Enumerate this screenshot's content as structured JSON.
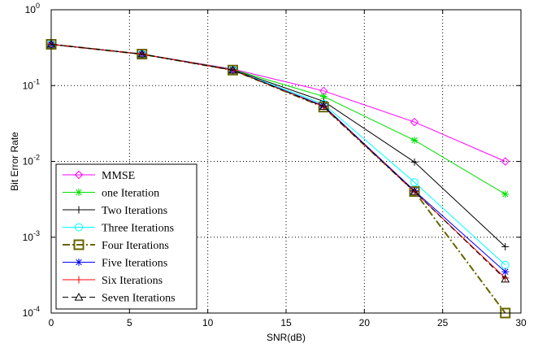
{
  "chart_data": {
    "type": "line",
    "xlabel": "SNR(dB)",
    "ylabel": "Bit Error Rate",
    "xlim": [
      0,
      30
    ],
    "ylim": [
      0.0001,
      1
    ],
    "yscale": "log",
    "grid": true,
    "legend_position": "bottom-left",
    "x_ticks": [
      "0",
      "5",
      "10",
      "15",
      "20",
      "25",
      "30"
    ],
    "y_ticks": [
      {
        "base": "10",
        "exp": "0",
        "value": 1
      },
      {
        "base": "10",
        "exp": "-1",
        "value": 0.1
      },
      {
        "base": "10",
        "exp": "-2",
        "value": 0.01
      },
      {
        "base": "10",
        "exp": "-3",
        "value": 0.001
      },
      {
        "base": "10",
        "exp": "-4",
        "value": 0.0001
      }
    ],
    "x": [
      0,
      5.8,
      11.6,
      17.4,
      23.2,
      29
    ],
    "series": [
      {
        "name": "MMSE",
        "color": "#ff00ff",
        "marker": "diamond",
        "dash": "",
        "values": [
          0.35,
          0.26,
          0.165,
          0.085,
          0.033,
          0.01
        ]
      },
      {
        "name": "one Iteration",
        "color": "#00e000",
        "marker": "star",
        "dash": "",
        "values": [
          0.35,
          0.26,
          0.163,
          0.072,
          0.019,
          0.0037
        ]
      },
      {
        "name": "Two Iterations",
        "color": "#000000",
        "marker": "plus",
        "dash": "",
        "values": [
          0.35,
          0.26,
          0.162,
          0.062,
          0.0098,
          0.00075
        ]
      },
      {
        "name": "Three Iterations",
        "color": "#00ffff",
        "marker": "circle",
        "dash": "",
        "values": [
          0.35,
          0.26,
          0.161,
          0.057,
          0.0053,
          0.00043
        ]
      },
      {
        "name": "Four Iterations",
        "color": "#666600",
        "marker": "square",
        "dash": "9,3,2,3",
        "values": [
          0.35,
          0.26,
          0.16,
          0.052,
          0.004,
          0.0001
        ]
      },
      {
        "name": "Five Iterations",
        "color": "#0000ff",
        "marker": "star",
        "dash": "",
        "values": [
          0.35,
          0.26,
          0.16,
          0.054,
          0.0041,
          0.00035
        ]
      },
      {
        "name": "Six Iterations",
        "color": "#ff0000",
        "marker": "plus",
        "dash": "",
        "values": [
          0.35,
          0.26,
          0.16,
          0.053,
          0.004,
          0.00029
        ]
      },
      {
        "name": "Seven Iterations",
        "color": "#000000",
        "marker": "triangle",
        "dash": "7,4",
        "values": [
          0.35,
          0.26,
          0.16,
          0.053,
          0.004,
          0.00028
        ]
      }
    ]
  }
}
